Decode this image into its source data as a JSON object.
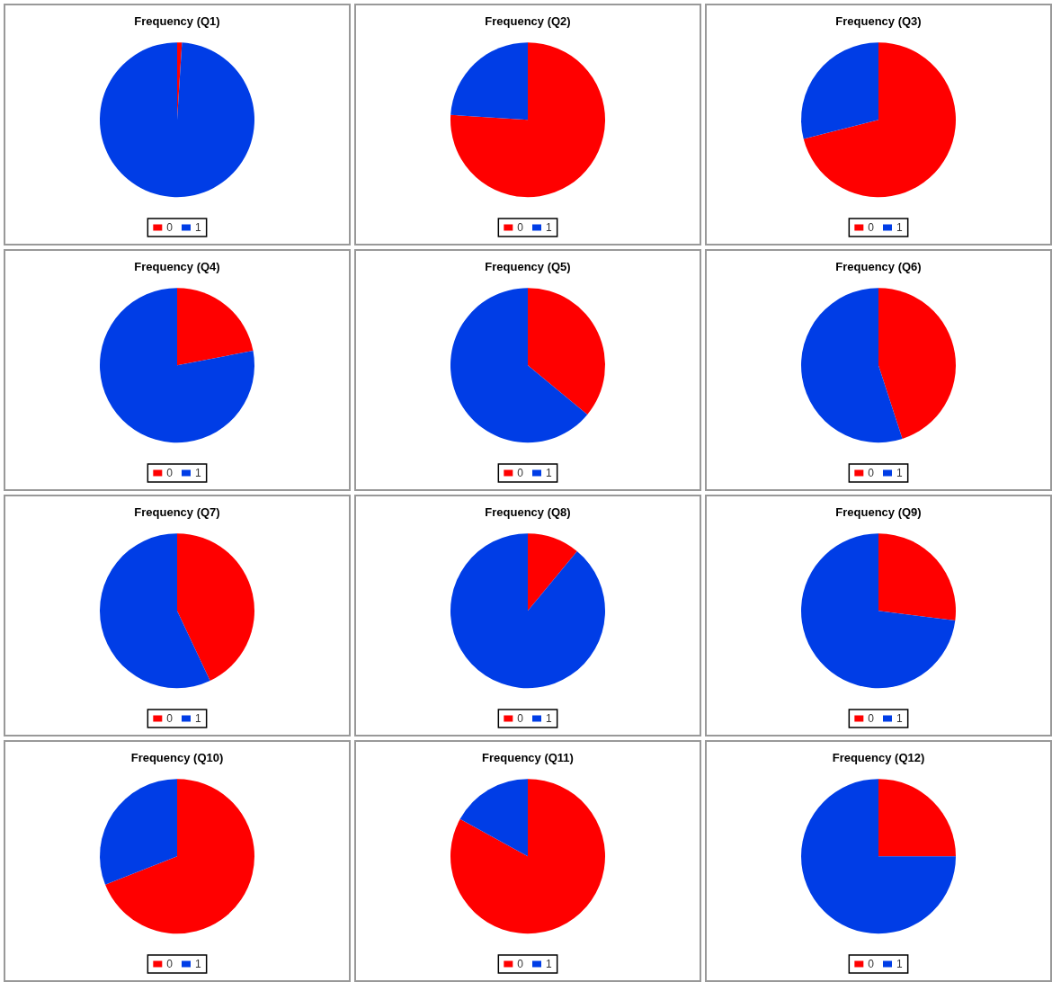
{
  "chart_data": [
    {
      "type": "pie",
      "title": "Frequency (Q1)",
      "categories": [
        "0",
        "1"
      ],
      "values": [
        1,
        99
      ],
      "colors": [
        "#ff0000",
        "#003de6"
      ],
      "legend": "bottom"
    },
    {
      "type": "pie",
      "title": "Frequency (Q2)",
      "categories": [
        "0",
        "1"
      ],
      "values": [
        76,
        24
      ],
      "colors": [
        "#ff0000",
        "#003de6"
      ],
      "legend": "bottom"
    },
    {
      "type": "pie",
      "title": "Frequency (Q3)",
      "categories": [
        "0",
        "1"
      ],
      "values": [
        71,
        29
      ],
      "colors": [
        "#ff0000",
        "#003de6"
      ],
      "legend": "bottom"
    },
    {
      "type": "pie",
      "title": "Frequency (Q4)",
      "categories": [
        "0",
        "1"
      ],
      "values": [
        22,
        78
      ],
      "colors": [
        "#ff0000",
        "#003de6"
      ],
      "legend": "bottom"
    },
    {
      "type": "pie",
      "title": "Frequency (Q5)",
      "categories": [
        "0",
        "1"
      ],
      "values": [
        36,
        64
      ],
      "colors": [
        "#ff0000",
        "#003de6"
      ],
      "legend": "bottom"
    },
    {
      "type": "pie",
      "title": "Frequency (Q6)",
      "categories": [
        "0",
        "1"
      ],
      "values": [
        45,
        55
      ],
      "colors": [
        "#ff0000",
        "#003de6"
      ],
      "legend": "bottom"
    },
    {
      "type": "pie",
      "title": "Frequency (Q7)",
      "categories": [
        "0",
        "1"
      ],
      "values": [
        43,
        57
      ],
      "colors": [
        "#ff0000",
        "#003de6"
      ],
      "legend": "bottom"
    },
    {
      "type": "pie",
      "title": "Frequency (Q8)",
      "categories": [
        "0",
        "1"
      ],
      "values": [
        11,
        89
      ],
      "colors": [
        "#ff0000",
        "#003de6"
      ],
      "legend": "bottom"
    },
    {
      "type": "pie",
      "title": "Frequency (Q9)",
      "categories": [
        "0",
        "1"
      ],
      "values": [
        27,
        73
      ],
      "colors": [
        "#ff0000",
        "#003de6"
      ],
      "legend": "bottom"
    },
    {
      "type": "pie",
      "title": "Frequency (Q10)",
      "categories": [
        "0",
        "1"
      ],
      "values": [
        69,
        31
      ],
      "colors": [
        "#ff0000",
        "#003de6"
      ],
      "legend": "bottom"
    },
    {
      "type": "pie",
      "title": "Frequency (Q11)",
      "categories": [
        "0",
        "1"
      ],
      "values": [
        83,
        17
      ],
      "colors": [
        "#ff0000",
        "#003de6"
      ],
      "legend": "bottom"
    },
    {
      "type": "pie",
      "title": "Frequency (Q12)",
      "categories": [
        "0",
        "1"
      ],
      "values": [
        25,
        75
      ],
      "colors": [
        "#ff0000",
        "#003de6"
      ],
      "legend": "bottom"
    }
  ]
}
